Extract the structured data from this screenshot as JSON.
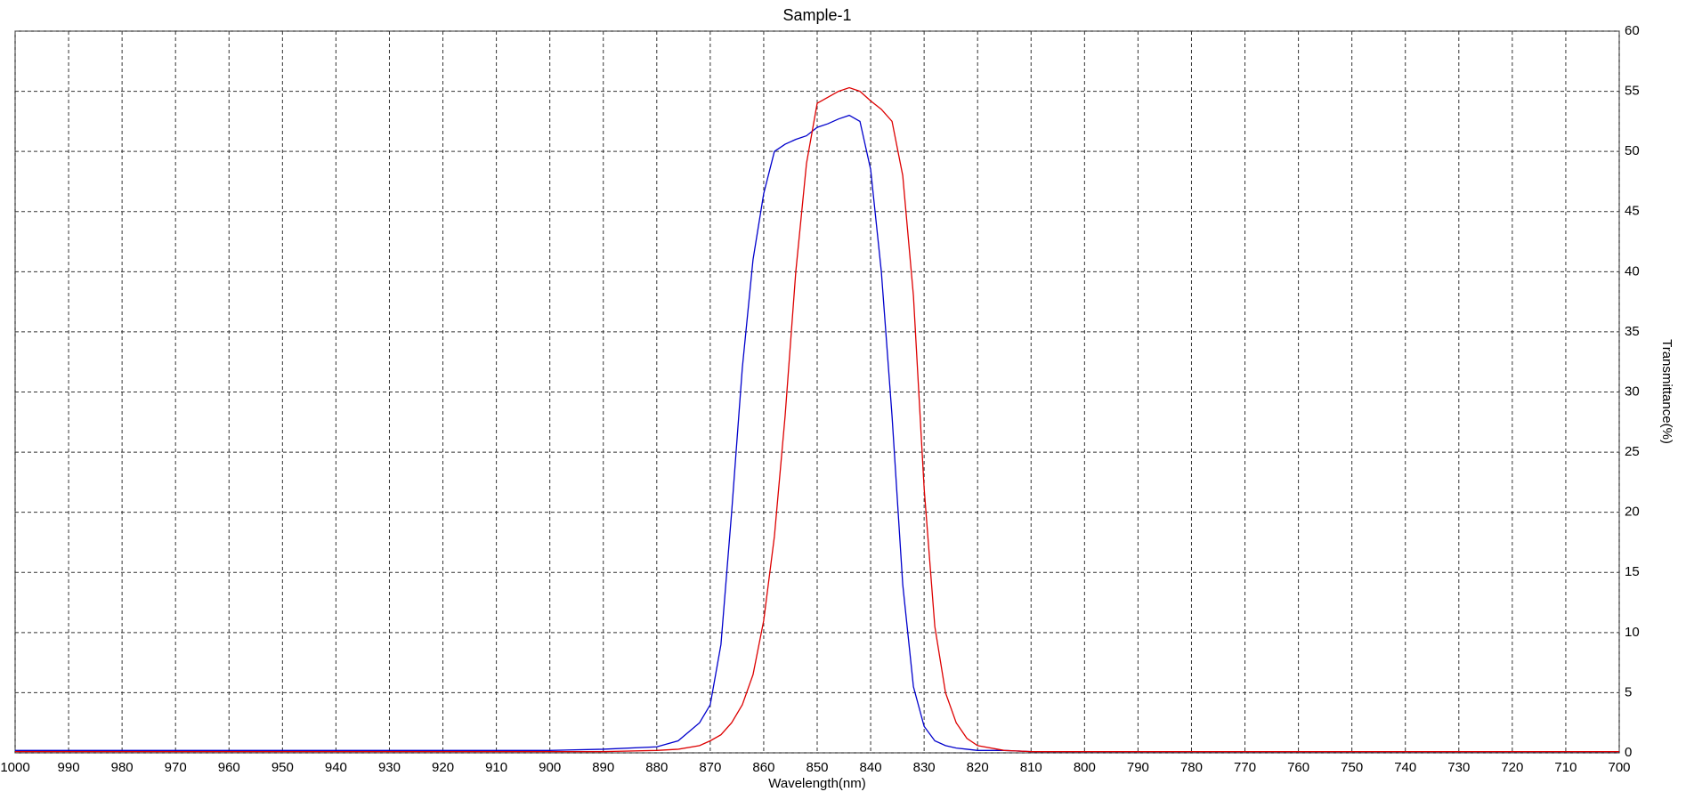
{
  "chart_data": {
    "type": "line",
    "title": "Sample-1",
    "x_label": "Wavelength(nm)",
    "y_label": "Transmittance(%)",
    "x": [
      1000,
      950,
      900,
      890,
      880,
      876,
      872,
      870,
      868,
      866,
      864,
      862,
      860,
      858,
      856,
      854,
      852,
      850,
      848,
      846,
      844,
      842,
      840,
      838,
      836,
      834,
      832,
      830,
      828,
      826,
      824,
      822,
      820,
      815,
      810,
      800,
      750,
      700
    ],
    "series": [
      {
        "color": "#0000cc",
        "values": [
          0.2,
          0.2,
          0.2,
          0.3,
          0.5,
          1,
          2.5,
          4,
          9,
          20,
          32,
          41,
          46.5,
          50,
          50.6,
          51,
          51.3,
          52,
          52.3,
          52.7,
          53,
          52.5,
          48.5,
          40,
          28,
          14,
          5.5,
          2.2,
          1,
          0.6,
          0.4,
          0.3,
          0.2,
          0.2,
          0.1,
          0.1,
          0.1,
          0.1
        ]
      },
      {
        "color": "#dd0000",
        "values": [
          0.1,
          0.1,
          0.1,
          0.1,
          0.2,
          0.3,
          0.6,
          1,
          1.5,
          2.5,
          4,
          6.5,
          11,
          18,
          28,
          40,
          49,
          54,
          54.5,
          55,
          55.3,
          55,
          54.2,
          53.5,
          52.5,
          48,
          38,
          22,
          10.5,
          5,
          2.5,
          1.2,
          0.6,
          0.2,
          0.1,
          0.1,
          0.1,
          0.1
        ]
      }
    ],
    "xlim": [
      1000,
      700
    ],
    "xticks": [
      1000,
      990,
      980,
      970,
      960,
      950,
      940,
      930,
      920,
      910,
      900,
      890,
      880,
      870,
      860,
      850,
      840,
      830,
      820,
      810,
      800,
      790,
      780,
      770,
      760,
      750,
      740,
      730,
      720,
      710,
      700
    ],
    "ylim": [
      0,
      60
    ],
    "yticks": [
      0,
      5,
      10,
      15,
      20,
      25,
      30,
      35,
      40,
      45,
      50,
      55,
      60
    ],
    "grid": true
  }
}
